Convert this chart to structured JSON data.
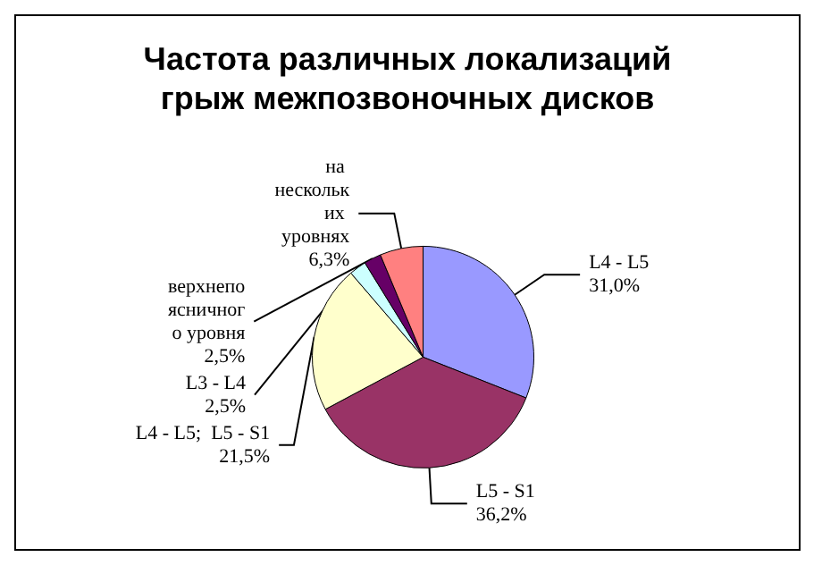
{
  "chart_data": {
    "type": "pie",
    "title": "Частота различных локализаций\nгрыж межпозвоночных дисков",
    "categories": [
      "L4 - L5",
      "L5 - S1",
      "L4 - L5;  L5 - S1",
      "L3 - L4",
      "верхнепоясничного уровня",
      "на нескольких уровнях"
    ],
    "values": [
      31.0,
      36.2,
      21.5,
      2.5,
      2.5,
      6.3
    ],
    "colors": [
      "#9999ff",
      "#993366",
      "#ffffcc",
      "#ccffff",
      "#660066",
      "#ff8080"
    ],
    "value_labels": [
      "31,0%",
      "36,2%",
      "21,5%",
      "2,5%",
      "2,5%",
      "6,3%"
    ],
    "legend": false
  }
}
